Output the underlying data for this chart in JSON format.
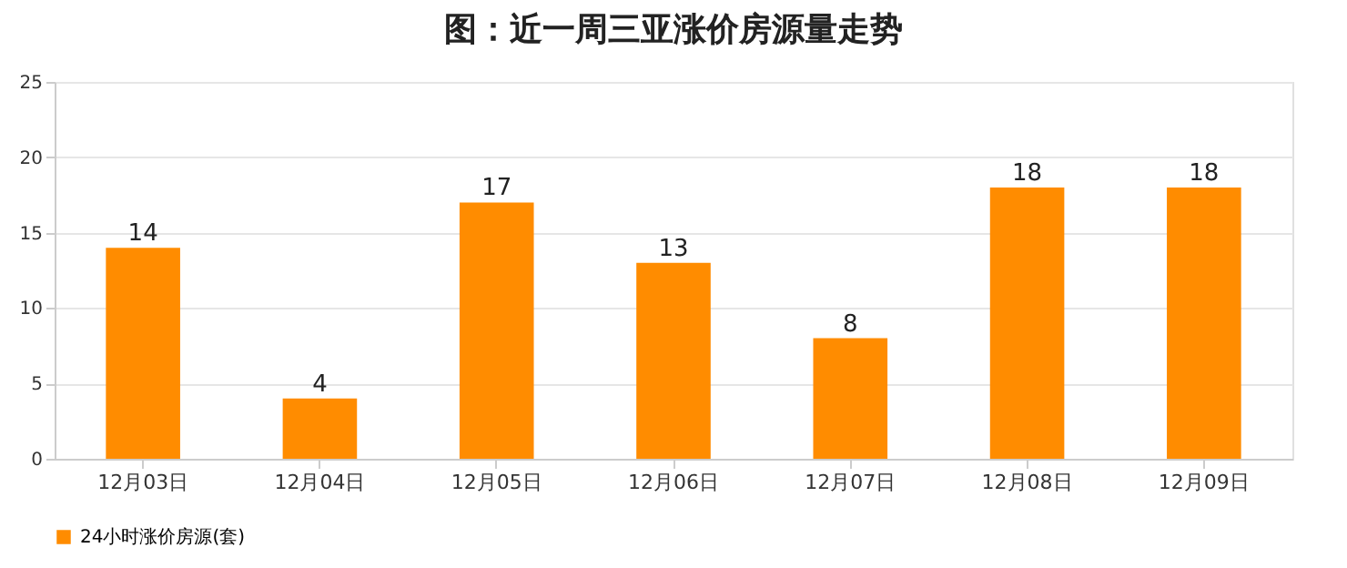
{
  "chart_data": {
    "type": "bar",
    "title": "图：近一周三亚涨价房源量走势",
    "categories": [
      "12月03日",
      "12月04日",
      "12月05日",
      "12月06日",
      "12月07日",
      "12月08日",
      "12月09日"
    ],
    "series": [
      {
        "name": "24小时涨价房源(套)",
        "color": "#ff8c00",
        "values": [
          14,
          4,
          17,
          13,
          8,
          18,
          18
        ]
      }
    ],
    "ylim": [
      0,
      25
    ],
    "yticks": [
      0,
      5,
      10,
      15,
      20,
      25
    ],
    "grid": "y",
    "legend": "bottom",
    "data_labels": true
  }
}
